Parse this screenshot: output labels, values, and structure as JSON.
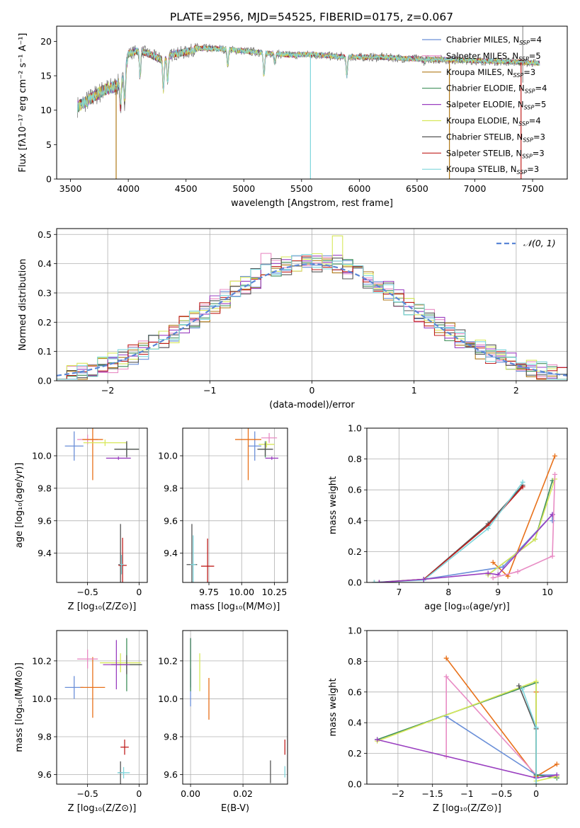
{
  "figure_title": "PLATE=2956, MJD=54525, FIBERID=0175, z=0.067",
  "colors": {
    "Chabrier MILES": "#6a8fd8",
    "Salpeter MILES": "#e88cc4",
    "Kroupa MILES": "#b07a1a",
    "Chabrier ELODIE": "#3f8f5a",
    "Salpeter ELODIE": "#9a3fc0",
    "Kroupa ELODIE": "#d7e85a",
    "Chabrier STELIB": "#555555",
    "Salpeter STELIB": "#c0201f",
    "Kroupa STELIB": "#7fd6dc",
    "orange": "#e8711a",
    "data": "#7f7f7f"
  },
  "chart_data": [
    {
      "id": "spectrum",
      "type": "line",
      "xlabel": "wavelength [Angstrom, rest frame]",
      "ylabel": "Flux [fλ10⁻¹⁷ erg cm⁻² s⁻¹ A⁻¹]",
      "xlim": [
        3380,
        7800
      ],
      "ylim": [
        0,
        22.2
      ],
      "xticks": [
        3500,
        4000,
        4500,
        5000,
        5500,
        6000,
        6500,
        7000,
        7500
      ],
      "yticks": [
        0,
        5,
        10,
        15,
        20
      ],
      "legend_position": "top-right",
      "legend": [
        {
          "name": "Chabrier MILES, N",
          "sub": "SSP",
          "tail": "=4"
        },
        {
          "name": "Salpeter MILES, N",
          "sub": "SSP",
          "tail": "=5"
        },
        {
          "name": "Kroupa MILES, N",
          "sub": "SSP",
          "tail": "=3"
        },
        {
          "name": "Chabrier ELODIE, N",
          "sub": "SSP",
          "tail": "=4"
        },
        {
          "name": "Salpeter ELODIE, N",
          "sub": "SSP",
          "tail": "=5"
        },
        {
          "name": "Kroupa ELODIE, N",
          "sub": "SSP",
          "tail": "=4"
        },
        {
          "name": "Chabrier STELIB, N",
          "sub": "SSP",
          "tail": "=3"
        },
        {
          "name": "Salpeter STELIB, N",
          "sub": "SSP",
          "tail": "=3"
        },
        {
          "name": "Kroupa STELIB, N",
          "sub": "SSP",
          "tail": "=3"
        }
      ],
      "continuum": {
        "x": [
          3560,
          3640,
          3700,
          3800,
          3900,
          3960,
          4000,
          4100,
          4200,
          4300,
          4400,
          4500,
          4600,
          4800,
          5000,
          5200,
          5400,
          5600,
          5800,
          6000,
          6200,
          6400,
          6600,
          6800,
          7000,
          7200,
          7400,
          7550
        ],
        "y": [
          10.5,
          11.3,
          12,
          13,
          13.5,
          14.5,
          18.2,
          18.7,
          18,
          17.3,
          18.2,
          18.4,
          19.0,
          18.9,
          18.6,
          18.3,
          18.0,
          18.1,
          17.8,
          17.7,
          17.7,
          17.5,
          17.4,
          17.3,
          17.2,
          17.1,
          17.0,
          16.8
        ]
      },
      "absorption_lines": [
        {
          "x": 3934,
          "y": 10.5
        },
        {
          "x": 3969,
          "y": 11.5
        },
        {
          "x": 4102,
          "y": 14.8
        },
        {
          "x": 4304,
          "y": 12.8
        },
        {
          "x": 4341,
          "y": 14.2
        },
        {
          "x": 4861,
          "y": 16.5
        },
        {
          "x": 5175,
          "y": 14.8
        },
        {
          "x": 5270,
          "y": 16.8
        },
        {
          "x": 5892,
          "y": 14.9
        },
        {
          "x": 6563,
          "y": 17.0
        }
      ],
      "spikes": [
        {
          "x": 3895,
          "y": 0,
          "color": "#b07a1a"
        },
        {
          "x": 5577,
          "y": 0,
          "color": "#7fd6dc"
        },
        {
          "x": 6780,
          "y": 0,
          "color": "#b07a1a"
        },
        {
          "x": 7400,
          "y": 0,
          "color": "#c0201f"
        }
      ]
    },
    {
      "id": "residuals",
      "type": "step",
      "xlabel": "(data-model)/error",
      "ylabel": "Normed distribution",
      "xlim": [
        -2.5,
        2.5
      ],
      "ylim": [
        0,
        0.52
      ],
      "xticks": [
        -2,
        -1,
        0,
        1,
        2
      ],
      "yticks": [
        0.0,
        0.1,
        0.2,
        0.3,
        0.4,
        0.5
      ],
      "normal_curve_label": "𝒩(0, 1)",
      "legend_position": "top-right",
      "bin_width": 0.1
    },
    {
      "id": "age_vs_Z",
      "type": "errorbar",
      "xlabel": "Z [log₁₀(Z/Z⊙)]",
      "ylabel": "age  [log₁₀(age/yr)]",
      "xlim": [
        -0.8,
        0.08
      ],
      "ylim": [
        9.22,
        10.17
      ],
      "xticks": [
        -0.5,
        0.0
      ],
      "yticks": [
        9.4,
        9.6,
        9.8,
        10.0
      ],
      "points": [
        {
          "color": "#6a8fd8",
          "x": -0.63,
          "y": 10.06,
          "xerr": 0.09,
          "yerr": 0.09
        },
        {
          "color": "#e88cc4",
          "x": -0.5,
          "y": 10.1,
          "xerr": 0.1,
          "yerr": 0.03
        },
        {
          "color": "#e8711a",
          "x": -0.45,
          "y": 10.1,
          "xerr": 0.1,
          "yerr": 0.25
        },
        {
          "color": "#d7e85a",
          "x": -0.33,
          "y": 10.08,
          "xerr": 0.21,
          "yerr": 0.02
        },
        {
          "color": "#3f8f5a",
          "x": -0.12,
          "y": 10.04,
          "xerr": 0.12,
          "yerr": 0.04
        },
        {
          "color": "#555555",
          "x": -0.12,
          "y": 10.04,
          "xerr": 0.12,
          "yerr": 0.05
        },
        {
          "color": "#9a3fc0",
          "x": -0.2,
          "y": 9.985,
          "xerr": 0.12,
          "yerr": 0.01
        },
        {
          "color": "#555555",
          "x": -0.18,
          "y": 9.33,
          "xerr": 0.02,
          "yerr": 0.25
        },
        {
          "color": "#c0201f",
          "x": -0.16,
          "y": 9.325,
          "xerr": 0.04,
          "yerr": 0.17
        },
        {
          "color": "#7fd6dc",
          "x": -0.17,
          "y": 9.33,
          "xerr": 0.02,
          "yerr": 0.06
        }
      ]
    },
    {
      "id": "age_vs_mass",
      "type": "errorbar",
      "xlabel": "mass [log₁₀(M/M⊙)]",
      "xlim": [
        9.55,
        10.35
      ],
      "ylim": [
        9.22,
        10.17
      ],
      "xticks": [
        9.75,
        10.0,
        10.25
      ],
      "xticklabels": [
        "9.75",
        "10.00",
        "10.25"
      ],
      "yticks": [
        9.4,
        9.6,
        9.8,
        10.0
      ],
      "points": [
        {
          "color": "#6a8fd8",
          "x": 10.1,
          "y": 10.06,
          "xerr": 0.05,
          "yerr": 0.09
        },
        {
          "color": "#e8711a",
          "x": 10.05,
          "y": 10.1,
          "xerr": 0.1,
          "yerr": 0.25
        },
        {
          "color": "#e88cc4",
          "x": 10.21,
          "y": 10.11,
          "xerr": 0.06,
          "yerr": 0.03
        },
        {
          "color": "#d7e85a",
          "x": 10.19,
          "y": 10.07,
          "xerr": 0.06,
          "yerr": 0.02
        },
        {
          "color": "#3f8f5a",
          "x": 10.18,
          "y": 10.04,
          "xerr": 0.05,
          "yerr": 0.05
        },
        {
          "color": "#555555",
          "x": 10.18,
          "y": 10.04,
          "xerr": 0.06,
          "yerr": 0.04
        },
        {
          "color": "#9a3fc0",
          "x": 10.23,
          "y": 9.985,
          "xerr": 0.05,
          "yerr": 0.01
        },
        {
          "color": "#555555",
          "x": 9.62,
          "y": 9.33,
          "xerr": 0.04,
          "yerr": 0.25
        },
        {
          "color": "#7fd6dc",
          "x": 9.63,
          "y": 9.33,
          "xerr": 0.02,
          "yerr": 0.18
        },
        {
          "color": "#c0201f",
          "x": 9.74,
          "y": 9.32,
          "xerr": 0.05,
          "yerr": 0.17
        }
      ]
    },
    {
      "id": "weight_vs_age",
      "type": "line",
      "xlabel": "age  [log₁₀(age/yr)]",
      "ylabel": "mass weight",
      "xlim": [
        6.35,
        10.4
      ],
      "ylim": [
        0,
        1.0
      ],
      "xticks": [
        7,
        8,
        9,
        10
      ],
      "yticks": [
        0.0,
        0.2,
        0.4,
        0.6,
        0.8,
        1.0
      ],
      "series": [
        {
          "color": "#555555",
          "x": [
            6.5,
            7.5,
            8.8,
            9.5
          ],
          "y": [
            0.0,
            0.02,
            0.38,
            0.63
          ]
        },
        {
          "color": "#c0201f",
          "x": [
            6.6,
            7.5,
            8.8,
            9.5
          ],
          "y": [
            0.0,
            0.02,
            0.37,
            0.62
          ]
        },
        {
          "color": "#7fd6dc",
          "x": [
            6.5,
            7.5,
            8.8,
            9.5
          ],
          "y": [
            0.0,
            0.015,
            0.35,
            0.65
          ]
        },
        {
          "color": "#6a8fd8",
          "x": [
            7.5,
            9.1,
            10.1
          ],
          "y": [
            0.02,
            0.1,
            0.44
          ]
        },
        {
          "color": "#6a8fd8",
          "x": [
            10.1,
            10.1
          ],
          "y": [
            0.44,
            0.4
          ]
        },
        {
          "color": "#e8711a",
          "x": [
            8.9,
            9.2,
            10.15
          ],
          "y": [
            0.13,
            0.04,
            0.82
          ]
        },
        {
          "color": "#3f8f5a",
          "x": [
            8.8,
            9.75,
            10.1
          ],
          "y": [
            0.05,
            0.28,
            0.66
          ]
        },
        {
          "color": "#d7e85a",
          "x": [
            8.8,
            9.75,
            10.15
          ],
          "y": [
            0.05,
            0.28,
            0.67
          ]
        },
        {
          "color": "#9a3fc0",
          "x": [
            6.6,
            7.5,
            8.8,
            9.0,
            10.1
          ],
          "y": [
            0.0,
            0.02,
            0.06,
            0.05,
            0.44
          ]
        },
        {
          "color": "#e88cc4",
          "x": [
            8.9,
            9.4,
            10.1,
            10.15
          ],
          "y": [
            0.03,
            0.07,
            0.17,
            0.7
          ]
        }
      ]
    },
    {
      "id": "mass_vs_Z",
      "type": "errorbar",
      "xlabel": "Z [log₁₀(Z/Z⊙)]",
      "ylabel": "mass [log₁₀(M/M⊙)]",
      "xlim": [
        -0.8,
        0.08
      ],
      "ylim": [
        9.55,
        10.36
      ],
      "xticks": [
        -0.5,
        0.0
      ],
      "yticks": [
        9.6,
        9.8,
        10.0,
        10.2
      ],
      "points": [
        {
          "color": "#6a8fd8",
          "x": -0.63,
          "y": 10.06,
          "xerr": 0.09,
          "yerr": 0.06
        },
        {
          "color": "#e8711a",
          "x": -0.45,
          "y": 10.06,
          "xerr": 0.12,
          "yerr": 0.16
        },
        {
          "color": "#e88cc4",
          "x": -0.5,
          "y": 10.21,
          "xerr": 0.1,
          "yerr": 0.05
        },
        {
          "color": "#d7e85a",
          "x": -0.18,
          "y": 10.19,
          "xerr": 0.2,
          "yerr": 0.05
        },
        {
          "color": "#3f8f5a",
          "x": -0.12,
          "y": 10.18,
          "xerr": 0.14,
          "yerr": 0.14
        },
        {
          "color": "#555555",
          "x": -0.12,
          "y": 10.18,
          "xerr": 0.15,
          "yerr": 0.05
        },
        {
          "color": "#9a3fc0",
          "x": -0.22,
          "y": 10.18,
          "xerr": 0.13,
          "yerr": 0.13
        },
        {
          "color": "#c0201f",
          "x": -0.14,
          "y": 9.745,
          "xerr": 0.04,
          "yerr": 0.04
        },
        {
          "color": "#555555",
          "x": -0.18,
          "y": 9.61,
          "xerr": 0.02,
          "yerr": 0.06
        },
        {
          "color": "#7fd6dc",
          "x": -0.15,
          "y": 9.61,
          "xerr": 0.06,
          "yerr": 0.03
        }
      ]
    },
    {
      "id": "mass_vs_ebv",
      "type": "errorbar",
      "xlabel": "E(B-V)",
      "xlim": [
        -0.003,
        0.037
      ],
      "ylim": [
        9.55,
        10.36
      ],
      "xticks": [
        0.0,
        0.02
      ],
      "xticklabels": [
        "0.00",
        "0.02"
      ],
      "yticks": [
        9.6,
        9.8,
        10.0,
        10.2
      ],
      "points": [
        {
          "color": "#6a8fd8",
          "x": 0.0,
          "y": 10.06,
          "xerr": 0,
          "yerr": 0.1
        },
        {
          "color": "#9a3fc0",
          "x": 0.0,
          "y": 10.19,
          "xerr": 0,
          "yerr": 0.13
        },
        {
          "color": "#3f8f5a",
          "x": 0.0,
          "y": 10.18,
          "xerr": 0,
          "yerr": 0.14
        },
        {
          "color": "#d7e85a",
          "x": 0.0035,
          "y": 10.14,
          "xerr": 0,
          "yerr": 0.1
        },
        {
          "color": "#e8711a",
          "x": 0.007,
          "y": 10.0,
          "xerr": 0,
          "yerr": 0.11
        },
        {
          "color": "#555555",
          "x": 0.0305,
          "y": 9.615,
          "xerr": 0,
          "yerr": 0.06
        },
        {
          "color": "#c0201f",
          "x": 0.036,
          "y": 9.745,
          "xerr": 0,
          "yerr": 0.04
        },
        {
          "color": "#7fd6dc",
          "x": 0.036,
          "y": 9.615,
          "xerr": 0,
          "yerr": 0.03
        }
      ]
    },
    {
      "id": "weight_vs_Z",
      "type": "line",
      "xlabel": "Z [log₁₀(Z/Z⊙)]",
      "ylabel": "mass weight",
      "xlim": [
        -2.45,
        0.45
      ],
      "ylim": [
        0,
        1.0
      ],
      "xticks": [
        -2.0,
        -1.5,
        -1.0,
        -0.5,
        0.0
      ],
      "yticks": [
        0.0,
        0.2,
        0.4,
        0.6,
        0.8,
        1.0
      ],
      "series": [
        {
          "color": "#e8711a",
          "x": [
            -1.3,
            -0.0,
            0.3
          ],
          "y": [
            0.82,
            0.05,
            0.13
          ]
        },
        {
          "color": "#e8711a",
          "x": [
            0.0,
            0.0
          ],
          "y": [
            0.05,
            0.6
          ]
        },
        {
          "color": "#e88cc4",
          "x": [
            -1.3,
            -1.3,
            0.0
          ],
          "y": [
            0.18,
            0.7,
            0.06
          ]
        },
        {
          "color": "#e88cc4",
          "x": [
            0.0,
            0.3
          ],
          "y": [
            0.06,
            0.05
          ]
        },
        {
          "color": "#6a8fd8",
          "x": [
            -1.3,
            0.0,
            0.3
          ],
          "y": [
            0.44,
            0.06,
            0.06
          ]
        },
        {
          "color": "#3f8f5a",
          "x": [
            -2.3,
            0.0,
            0.0,
            0.3
          ],
          "y": [
            0.29,
            0.66,
            0.06,
            0.04
          ]
        },
        {
          "color": "#d7e85a",
          "x": [
            -2.3,
            0.0,
            0.0,
            0.3
          ],
          "y": [
            0.28,
            0.67,
            0.02,
            0.05
          ]
        },
        {
          "color": "#9a3fc0",
          "x": [
            -2.3,
            0.0,
            0.3
          ],
          "y": [
            0.29,
            0.04,
            0.06
          ]
        },
        {
          "color": "#555555",
          "x": [
            -0.25,
            0.0,
            0.0
          ],
          "y": [
            0.64,
            0.36,
            0.0
          ]
        },
        {
          "color": "#7fd6dc",
          "x": [
            -0.2,
            0.0,
            0.0
          ],
          "y": [
            0.62,
            0.37,
            0.0
          ]
        }
      ]
    }
  ]
}
